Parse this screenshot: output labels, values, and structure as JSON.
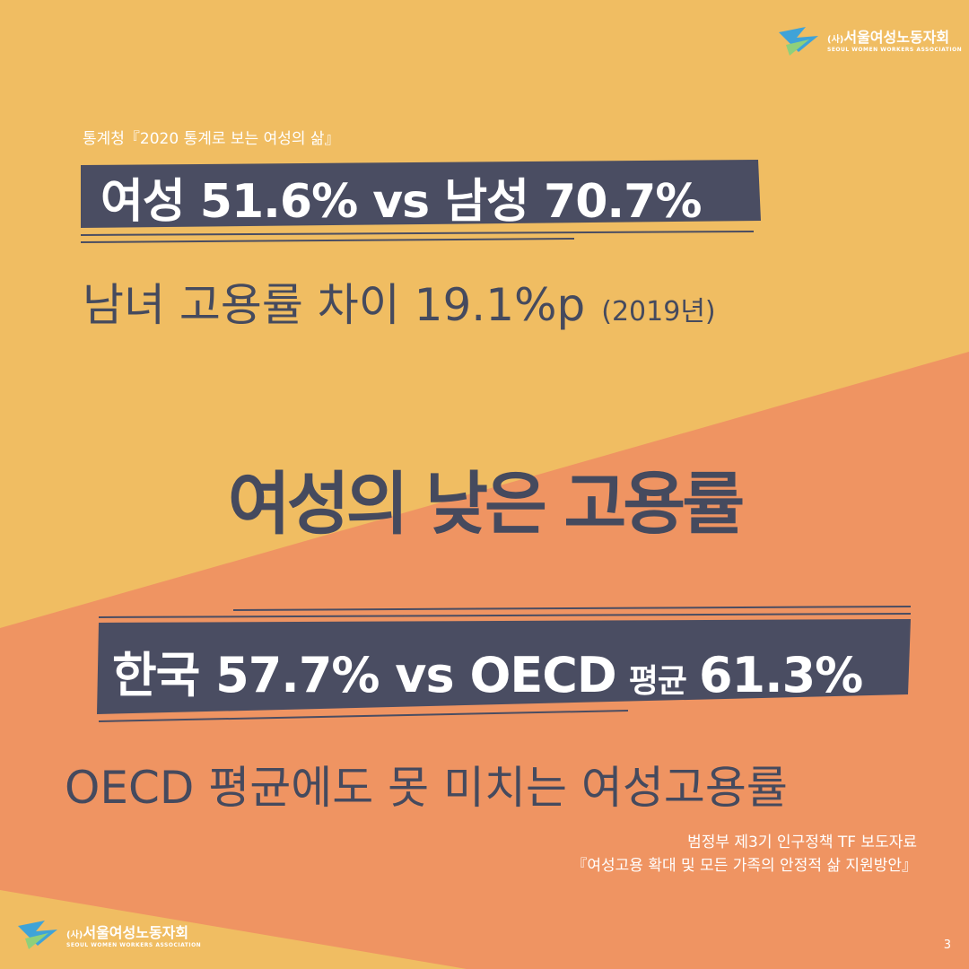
{
  "logo": {
    "prefix": "(사)",
    "name": "서울여성노동자회",
    "english": "SEOUL WOMEN WORKERS ASSOCIATION"
  },
  "source_top": "통계청『2020 통계로 보는 여성의 삶』",
  "headline_top": "여성 51.6% vs 남성 70.7%",
  "subline_top": {
    "text": "남녀 고용률 차이 19.1%p",
    "note": "(2019년)"
  },
  "title": "여성의 낮은 고용률",
  "headline_bottom": {
    "left": "한국 57.7% vs OECD",
    "middle": "평균",
    "right": "61.3%"
  },
  "subline_bottom": "OECD 평균에도 못 미치는 여성고용률",
  "source_bottom": [
    "범정부 제3기 인구정책 TF 보도자료",
    "『여성고용 확대 및 모든 가족의 안정적 삶 지원방안』"
  ],
  "page_number": "3"
}
